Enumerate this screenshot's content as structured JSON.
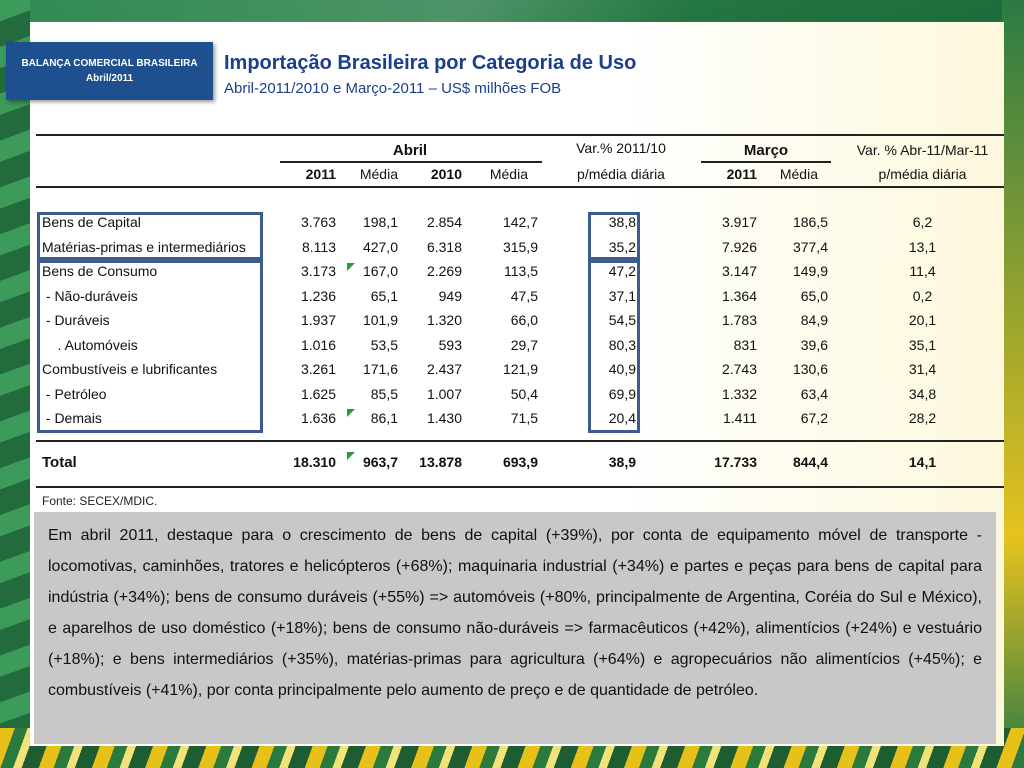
{
  "badge": {
    "line1": "BALANÇA COMERCIAL BRASILEIRA",
    "line2": "Abril/2011"
  },
  "title": "Importação Brasileira por Categoria de Uso",
  "subtitle": "Abril-2011/2010 e Março-2011 – US$ milhões FOB",
  "table": {
    "group_abril": "Abril",
    "group_var1_line1": "Var.% 2011/10",
    "group_var1_line2": "p/média diária",
    "group_marco": "Março",
    "group_var2_line1": "Var. % Abr-11/Mar-11",
    "group_var2_line2": "p/média diária",
    "sub_headers": [
      "2011",
      "Média",
      "2010",
      "Média",
      "2011",
      "Média"
    ],
    "rows": [
      {
        "label": "Bens de Capital",
        "v": [
          "3.763",
          "198,1",
          "2.854",
          "142,7",
          "38,8",
          "3.917",
          "186,5",
          "6,2"
        ]
      },
      {
        "label": "Matérias-primas e intermediários",
        "v": [
          "8.113",
          "427,0",
          "6.318",
          "315,9",
          "35,2",
          "7.926",
          "377,4",
          "13,1"
        ]
      },
      {
        "label": "Bens de Consumo",
        "v": [
          "3.173",
          "167,0",
          "2.269",
          "113,5",
          "47,2",
          "3.147",
          "149,9",
          "11,4"
        ]
      },
      {
        "label": " - Não-duráveis",
        "v": [
          "1.236",
          "65,1",
          "949",
          "47,5",
          "37,1",
          "1.364",
          "65,0",
          "0,2"
        ]
      },
      {
        "label": " - Duráveis",
        "v": [
          "1.937",
          "101,9",
          "1.320",
          "66,0",
          "54,5",
          "1.783",
          "84,9",
          "20,1"
        ]
      },
      {
        "label": "    . Automóveis",
        "v": [
          "1.016",
          "53,5",
          "593",
          "29,7",
          "80,3",
          "831",
          "39,6",
          "35,1"
        ]
      },
      {
        "label": "Combustíveis e lubrificantes",
        "v": [
          "3.261",
          "171,6",
          "2.437",
          "121,9",
          "40,9",
          "2.743",
          "130,6",
          "31,4"
        ]
      },
      {
        "label": " - Petróleo",
        "v": [
          "1.625",
          "85,5",
          "1.007",
          "50,4",
          "69,9",
          "1.332",
          "63,4",
          "34,8"
        ]
      },
      {
        "label": " - Demais",
        "v": [
          "1.636",
          "86,1",
          "1.430",
          "71,5",
          "20,4",
          "1.411",
          "67,2",
          "28,2"
        ]
      }
    ],
    "total": {
      "label": "Total",
      "v": [
        "18.310",
        "963,7",
        "13.878",
        "693,9",
        "38,9",
        "17.733",
        "844,4",
        "14,1"
      ]
    }
  },
  "source": "Fonte: SECEX/MDIC.",
  "text": "Em abril 2011, destaque para o crescimento de bens de capital (+39%), por conta de equipamento móvel de transporte -  locomotivas, caminhões, tratores e helicópteros (+68%); maquinaria industrial (+34%) e partes e peças para bens de capital para indústria (+34%); bens de consumo duráveis (+55%) => automóveis (+80%, principalmente de Argentina, Coréia do Sul e México), e aparelhos de uso doméstico (+18%); bens de consumo não-duráveis => farmacêuticos (+42%), alimentícios (+24%) e vestuário (+18%); e bens intermediários (+35%), matérias-primas para agricultura (+64%) e agropecuários não alimentícios (+45%); e combustíveis (+41%), por conta principalmente pelo aumento de preço e de quantidade de petróleo."
}
